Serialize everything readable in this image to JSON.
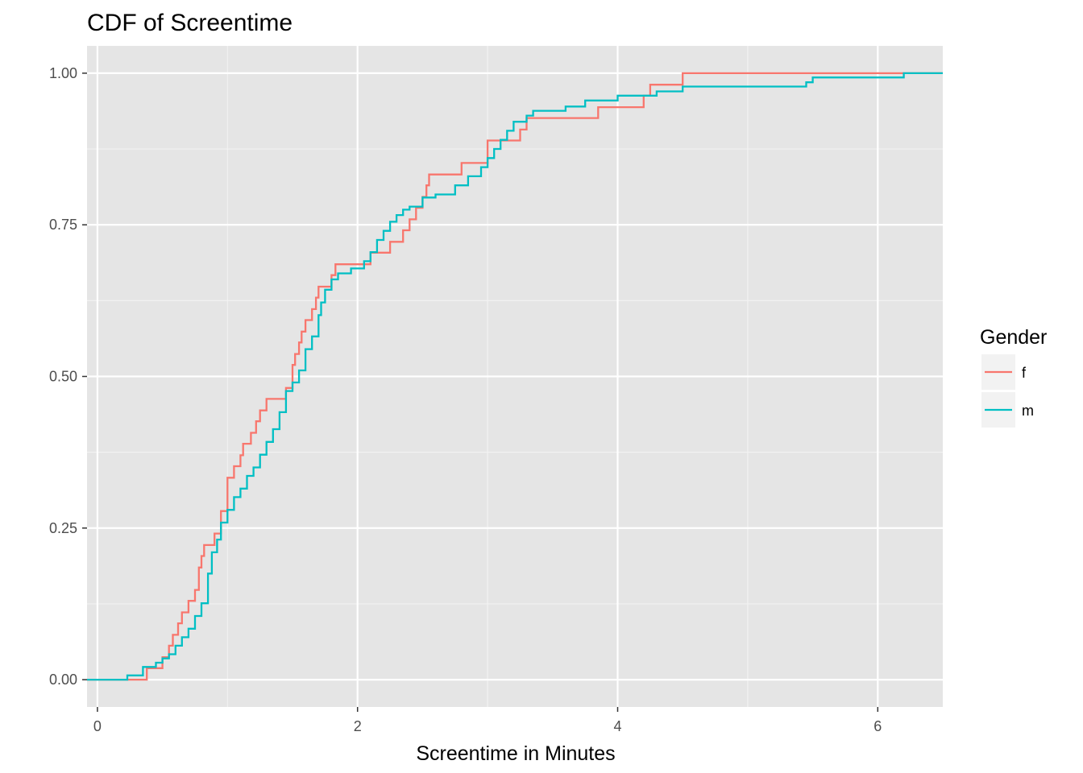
{
  "chart_data": {
    "type": "line",
    "title": "CDF of Screentime",
    "xlabel": "Screentime in Minutes",
    "ylabel": "",
    "xlim": [
      -0.08,
      6.5
    ],
    "ylim": [
      -0.045,
      1.045
    ],
    "x_ticks": [
      0,
      2,
      4,
      6
    ],
    "y_ticks": [
      0.0,
      0.25,
      0.5,
      0.75,
      1.0
    ],
    "x_tick_labels": [
      "0",
      "2",
      "4",
      "6"
    ],
    "y_tick_labels": [
      "0.00",
      "0.25",
      "0.50",
      "0.75",
      "1.00"
    ],
    "grid": true,
    "panel_background": "#e5e5e5",
    "step": true,
    "legend": {
      "title": "Gender",
      "position": "right"
    },
    "series": [
      {
        "name": "f",
        "color": "#f8766d",
        "x": [
          -0.08,
          0.38,
          0.38,
          0.5,
          0.55,
          0.58,
          0.62,
          0.65,
          0.7,
          0.75,
          0.78,
          0.8,
          0.82,
          0.9,
          0.95,
          1.0,
          1.05,
          1.1,
          1.12,
          1.18,
          1.22,
          1.25,
          1.3,
          1.45,
          1.5,
          1.52,
          1.55,
          1.57,
          1.6,
          1.65,
          1.68,
          1.7,
          1.73,
          1.8,
          1.83,
          1.85,
          2.1,
          2.25,
          2.35,
          2.38,
          2.4,
          2.45,
          2.5,
          2.53,
          2.55,
          2.8,
          3.0,
          3.05,
          3.25,
          3.3,
          3.85,
          4.2,
          4.25,
          4.5,
          6.5
        ],
        "y": [
          0.0,
          0.0,
          0.019,
          0.037,
          0.056,
          0.074,
          0.093,
          0.111,
          0.13,
          0.148,
          0.185,
          0.204,
          0.222,
          0.241,
          0.278,
          0.333,
          0.352,
          0.37,
          0.389,
          0.407,
          0.426,
          0.444,
          0.463,
          0.481,
          0.519,
          0.537,
          0.556,
          0.574,
          0.593,
          0.611,
          0.63,
          0.648,
          0.648,
          0.667,
          0.685,
          0.685,
          0.704,
          0.722,
          0.741,
          0.741,
          0.759,
          0.778,
          0.796,
          0.815,
          0.833,
          0.852,
          0.889,
          0.889,
          0.907,
          0.926,
          0.944,
          0.963,
          0.981,
          1.0,
          1.0
        ]
      },
      {
        "name": "m",
        "color": "#00bfc4",
        "x": [
          -0.08,
          0.23,
          0.35,
          0.45,
          0.5,
          0.55,
          0.6,
          0.65,
          0.7,
          0.75,
          0.8,
          0.85,
          0.88,
          0.92,
          0.95,
          1.0,
          1.05,
          1.1,
          1.15,
          1.2,
          1.25,
          1.3,
          1.35,
          1.4,
          1.45,
          1.5,
          1.55,
          1.6,
          1.65,
          1.7,
          1.72,
          1.75,
          1.8,
          1.85,
          1.95,
          2.05,
          2.1,
          2.15,
          2.2,
          2.25,
          2.3,
          2.35,
          2.4,
          2.5,
          2.6,
          2.75,
          2.85,
          2.95,
          3.0,
          3.05,
          3.1,
          3.15,
          3.2,
          3.3,
          3.35,
          3.6,
          3.75,
          4.0,
          4.3,
          4.5,
          5.45,
          5.5,
          6.2,
          6.5
        ],
        "y": [
          0.0,
          0.007,
          0.021,
          0.028,
          0.035,
          0.042,
          0.056,
          0.07,
          0.084,
          0.105,
          0.126,
          0.175,
          0.21,
          0.231,
          0.259,
          0.28,
          0.301,
          0.315,
          0.336,
          0.35,
          0.371,
          0.392,
          0.413,
          0.441,
          0.476,
          0.49,
          0.51,
          0.545,
          0.566,
          0.601,
          0.622,
          0.643,
          0.66,
          0.67,
          0.678,
          0.69,
          0.705,
          0.725,
          0.74,
          0.755,
          0.766,
          0.775,
          0.78,
          0.795,
          0.8,
          0.815,
          0.83,
          0.845,
          0.86,
          0.875,
          0.89,
          0.905,
          0.92,
          0.93,
          0.938,
          0.945,
          0.955,
          0.963,
          0.97,
          0.978,
          0.985,
          0.993,
          1.0,
          1.0
        ]
      }
    ]
  }
}
